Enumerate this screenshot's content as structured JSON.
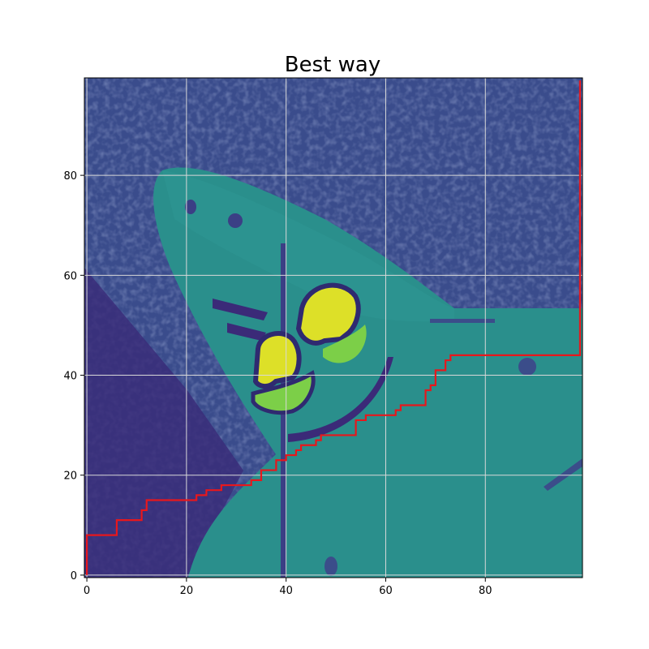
{
  "chart_data": {
    "type": "heatmap",
    "title": "Best way",
    "xlabel": "",
    "ylabel": "",
    "xlim": [
      -0.5,
      99.5
    ],
    "ylim": [
      99.5,
      -0.5
    ],
    "xticks": [
      0,
      20,
      40,
      60,
      80
    ],
    "yticks": [
      0,
      20,
      40,
      60,
      80
    ],
    "grid": true,
    "colormap": "viridis",
    "image_size": [
      100,
      100
    ],
    "path_color": "#e8171c",
    "path": [
      [
        0,
        0
      ],
      [
        0,
        8
      ],
      [
        6,
        8
      ],
      [
        6,
        11
      ],
      [
        11,
        11
      ],
      [
        11,
        13
      ],
      [
        12,
        13
      ],
      [
        12,
        15
      ],
      [
        22,
        15
      ],
      [
        22,
        16
      ],
      [
        24,
        16
      ],
      [
        24,
        17
      ],
      [
        27,
        17
      ],
      [
        27,
        18
      ],
      [
        33,
        18
      ],
      [
        33,
        19
      ],
      [
        35,
        19
      ],
      [
        35,
        21
      ],
      [
        38,
        21
      ],
      [
        38,
        23
      ],
      [
        40,
        23
      ],
      [
        40,
        24
      ],
      [
        42,
        24
      ],
      [
        42,
        25
      ],
      [
        43,
        25
      ],
      [
        43,
        26
      ],
      [
        46,
        26
      ],
      [
        46,
        27
      ],
      [
        47,
        27
      ],
      [
        47,
        28
      ],
      [
        54,
        28
      ],
      [
        54,
        31
      ],
      [
        56,
        31
      ],
      [
        56,
        32
      ],
      [
        62,
        32
      ],
      [
        62,
        33
      ],
      [
        63,
        33
      ],
      [
        63,
        34
      ],
      [
        68,
        34
      ],
      [
        68,
        37
      ],
      [
        69,
        37
      ],
      [
        69,
        38
      ],
      [
        70,
        38
      ],
      [
        70,
        41
      ],
      [
        72,
        41
      ],
      [
        72,
        43
      ],
      [
        73,
        43
      ],
      [
        73,
        44
      ],
      [
        99,
        44
      ],
      [
        99,
        99
      ]
    ]
  }
}
